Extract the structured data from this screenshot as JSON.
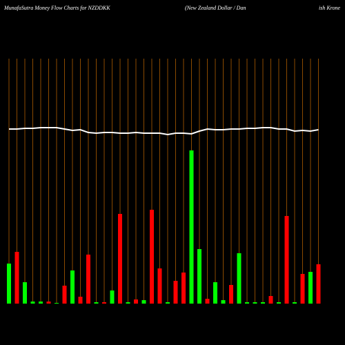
{
  "chart_data": {
    "type": "bar",
    "title": "MunafaSutra  Money Flow  Charts for NZDDKK",
    "subtitle": "(New  Zealand Dollar / Dan",
    "subtitle_tail": "ish Krone",
    "categories": [
      null,
      null,
      null,
      null,
      null,
      null,
      null,
      null,
      null,
      null,
      null,
      null,
      null,
      null,
      null,
      null,
      null,
      null,
      null,
      null,
      null,
      null,
      null,
      null,
      null,
      null,
      null,
      null,
      null,
      null,
      null,
      null,
      null,
      null,
      null,
      null,
      null,
      null,
      null,
      null
    ],
    "series": [
      {
        "color": "#00ff00",
        "colors": [
          "#00ff00",
          "#ff0000",
          "#00ff00",
          "#00ff00",
          "#00ff00",
          "#ff0000",
          "#00ff00",
          "#ff0000",
          "#00ff00",
          "#ff0000",
          "#ff0000",
          "#00ff00",
          "#ff0000",
          "#00ff00",
          "#ff0000",
          "#00ff00",
          "#ff0000",
          "#00ff00",
          "#ff0000",
          "#ff0000",
          "#00ff00",
          "#ff0000",
          "#ff0000",
          "#00ff00",
          "#00ff00",
          "#ff0000",
          "#00ff00",
          "#00ff00",
          "#ff0000",
          "#00ff00",
          "#00ff00",
          "#00ff00",
          "#00ff00",
          "#ff0000",
          "#00ff00",
          "#ff0000",
          "#00ff00",
          "#ff0000",
          "#00ff00",
          "#ff0000"
        ],
        "values": [
          58,
          75,
          31,
          3,
          3,
          3,
          1,
          26,
          48,
          10,
          71,
          2,
          2,
          19,
          130,
          2,
          6,
          5,
          136,
          51,
          2,
          33,
          45,
          222,
          79,
          7,
          31,
          5,
          27,
          73,
          2,
          2,
          2,
          11,
          2,
          127,
          2,
          43,
          46,
          57
        ]
      },
      {
        "type": "line",
        "color": "#ffffff",
        "values": [
          253,
          253,
          254,
          254,
          255,
          255,
          255,
          253,
          251,
          252,
          248,
          247,
          248,
          248,
          247,
          247,
          248,
          247,
          247,
          247,
          245,
          247,
          247,
          246,
          250,
          253,
          252,
          252,
          253,
          253,
          254,
          254,
          255,
          255,
          253,
          253,
          250,
          251,
          250,
          252
        ]
      }
    ],
    "ylim": [
      0,
      260
    ],
    "vertical_lines_color": "#8b4a00"
  }
}
